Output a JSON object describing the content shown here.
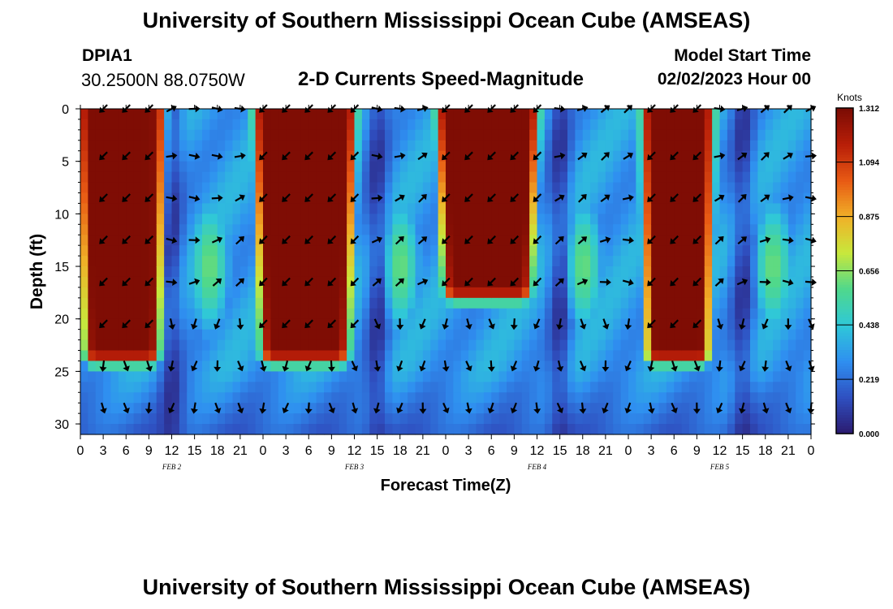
{
  "header": {
    "title": "University of Southern Mississippi Ocean Cube (AMSEAS)",
    "station": "DPIA1",
    "coordinates": "30.2500N  88.0750W",
    "subtitle": "2-D Currents Speed-Magnitude",
    "model_start_label": "Model Start Time",
    "model_start_date": "02/02/2023 Hour 00"
  },
  "footer": {
    "title": "University of Southern Mississippi Ocean Cube (AMSEAS)"
  },
  "chart_data": {
    "type": "heatmap",
    "title": "2-D Currents Speed-Magnitude",
    "xlabel": "Forecast Time(Z)",
    "ylabel": "Depth (ft)",
    "xlim": [
      0,
      96
    ],
    "ylim": [
      0,
      31
    ],
    "y_inverted": true,
    "x_tick_labels": [
      "0",
      "3",
      "6",
      "9",
      "12",
      "15",
      "18",
      "21",
      "0",
      "3",
      "6",
      "9",
      "12",
      "15",
      "18",
      "21",
      "0",
      "3",
      "6",
      "9",
      "12",
      "15",
      "18",
      "21",
      "0",
      "3",
      "6",
      "9",
      "12",
      "15",
      "18",
      "21",
      "0"
    ],
    "y_ticks": [
      0,
      5,
      10,
      15,
      20,
      25,
      30
    ],
    "date_labels": [
      {
        "text": "FEB 2",
        "hour": 12
      },
      {
        "text": "FEB 3",
        "hour": 36
      },
      {
        "text": "FEB 4",
        "hour": 60
      },
      {
        "text": "FEB 5",
        "hour": 84
      }
    ],
    "colorbar": {
      "label": "Knots",
      "ticks": [
        "0.000",
        "0.219",
        "0.438",
        "0.656",
        "0.875",
        "1.094",
        "1.312"
      ],
      "min": 0,
      "max": 1.312
    },
    "strong_current_bands": [
      {
        "start_hour": 1,
        "end_hour": 10,
        "max_depth_ft": 23,
        "peak_knots": 1.3
      },
      {
        "start_hour": 24,
        "end_hour": 35,
        "max_depth_ft": 23,
        "peak_knots": 1.3
      },
      {
        "start_hour": 48,
        "end_hour": 59,
        "max_depth_ft": 17,
        "peak_knots": 1.3
      },
      {
        "start_hour": 75,
        "end_hour": 82,
        "max_depth_ft": 23,
        "peak_knots": 1.3
      }
    ],
    "vector_depths_ft": [
      0,
      4.5,
      8.5,
      12.5,
      16.5,
      20.5,
      24.5,
      28.5
    ],
    "vector_hours": [
      3,
      6,
      9,
      12,
      15,
      18,
      21,
      24,
      27,
      30,
      33,
      36,
      39,
      42,
      45,
      48,
      51,
      54,
      57,
      60,
      63,
      66,
      69,
      72,
      75,
      78,
      81,
      84,
      87,
      90,
      93,
      96
    ]
  },
  "colors": {
    "colormap": [
      "#2b1a6e",
      "#2f4fc0",
      "#2f8ff0",
      "#2fc8d8",
      "#4fd88c",
      "#c8e83c",
      "#f0b028",
      "#e85a14",
      "#b81e08",
      "#7a0c04"
    ]
  }
}
